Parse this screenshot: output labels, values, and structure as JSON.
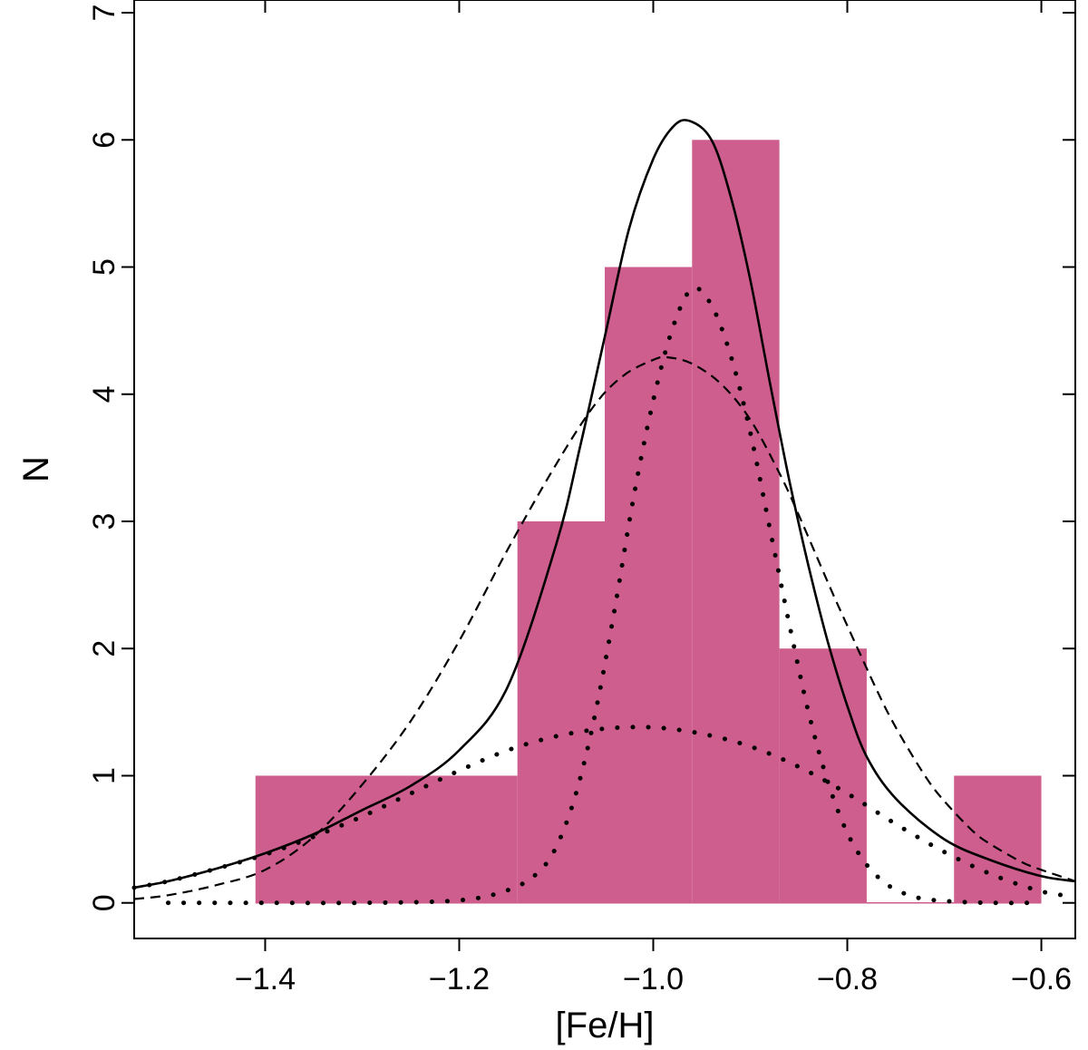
{
  "chart_data": {
    "type": "bar",
    "xlabel": "[Fe/H]",
    "ylabel": "N",
    "xlim": [
      -1.535,
      -0.565
    ],
    "ylim": [
      -0.28,
      7.1
    ],
    "xticks": [
      -1.4,
      -1.2,
      -1.0,
      -0.8,
      -0.6
    ],
    "xtick_labels": [
      "−1.4",
      "−1.2",
      "−1.0",
      "−0.8",
      "−0.6"
    ],
    "yticks": [
      0,
      1,
      2,
      3,
      4,
      5,
      6,
      7
    ],
    "ytick_labels": [
      "0",
      "1",
      "2",
      "3",
      "4",
      "5",
      "6",
      "7"
    ],
    "grid": false,
    "bar_color": "#cd5e8e",
    "histogram": {
      "bins": [
        {
          "x0": -1.41,
          "x1": -1.14,
          "count": 1
        },
        {
          "x0": -1.14,
          "x1": -1.05,
          "count": 3
        },
        {
          "x0": -1.05,
          "x1": -0.96,
          "count": 5
        },
        {
          "x0": -0.96,
          "x1": -0.87,
          "count": 6
        },
        {
          "x0": -0.87,
          "x1": -0.78,
          "count": 2
        },
        {
          "x0": -0.78,
          "x1": -0.69,
          "count": 0
        },
        {
          "x0": -0.69,
          "x1": -0.6,
          "count": 1
        }
      ]
    },
    "curves": [
      {
        "style": "solid",
        "x": [
          -1.535,
          -1.5,
          -1.45,
          -1.4,
          -1.35,
          -1.3,
          -1.25,
          -1.2,
          -1.15,
          -1.1,
          -1.075,
          -1.05,
          -1.025,
          -1.0,
          -0.98,
          -0.963,
          -0.94,
          -0.92,
          -0.9,
          -0.88,
          -0.86,
          -0.84,
          -0.82,
          -0.8,
          -0.78,
          -0.75,
          -0.7,
          -0.65,
          -0.6,
          -0.565
        ],
        "y": [
          0.12,
          0.17,
          0.27,
          0.39,
          0.54,
          0.73,
          0.92,
          1.2,
          1.7,
          2.82,
          3.6,
          4.45,
          5.3,
          5.85,
          6.1,
          6.15,
          6.0,
          5.55,
          4.9,
          4.1,
          3.33,
          2.65,
          2.05,
          1.55,
          1.15,
          0.82,
          0.5,
          0.33,
          0.21,
          0.17
        ]
      },
      {
        "style": "dashed",
        "x": [
          -1.535,
          -1.5,
          -1.45,
          -1.4,
          -1.35,
          -1.3,
          -1.25,
          -1.2,
          -1.15,
          -1.1,
          -1.06,
          -1.03,
          -1.0,
          -0.985,
          -0.96,
          -0.93,
          -0.9,
          -0.87,
          -0.85,
          -0.82,
          -0.8,
          -0.77,
          -0.75,
          -0.72,
          -0.7,
          -0.67,
          -0.65,
          -0.62,
          -0.6,
          -0.565
        ],
        "y": [
          0.03,
          0.06,
          0.14,
          0.26,
          0.52,
          0.93,
          1.43,
          2.06,
          2.78,
          3.45,
          3.92,
          4.15,
          4.27,
          4.29,
          4.24,
          4.08,
          3.8,
          3.38,
          3.05,
          2.52,
          2.18,
          1.68,
          1.38,
          1.0,
          0.8,
          0.56,
          0.45,
          0.32,
          0.26,
          0.17
        ]
      },
      {
        "style": "dotted",
        "x": [
          -1.535,
          -1.5,
          -1.45,
          -1.4,
          -1.35,
          -1.3,
          -1.25,
          -1.2,
          -1.15,
          -1.1,
          -1.05,
          -1.0,
          -0.95,
          -0.9,
          -0.85,
          -0.8,
          -0.75,
          -0.7,
          -0.65,
          -0.6,
          -0.565
        ],
        "y": [
          0.12,
          0.17,
          0.27,
          0.38,
          0.52,
          0.68,
          0.86,
          1.04,
          1.2,
          1.31,
          1.37,
          1.38,
          1.33,
          1.23,
          1.07,
          0.86,
          0.62,
          0.4,
          0.22,
          0.09,
          0.05
        ]
      },
      {
        "style": "dotted",
        "x": [
          -1.5,
          -1.4,
          -1.3,
          -1.2,
          -1.15,
          -1.12,
          -1.1,
          -1.08,
          -1.06,
          -1.04,
          -1.02,
          -1.0,
          -0.98,
          -0.96,
          -0.94,
          -0.92,
          -0.9,
          -0.88,
          -0.86,
          -0.84,
          -0.82,
          -0.8,
          -0.78,
          -0.76,
          -0.74,
          -0.72,
          -0.69,
          -0.65,
          -0.6
        ],
        "y": [
          0.0,
          0.0,
          0.0,
          0.02,
          0.1,
          0.23,
          0.44,
          0.85,
          1.48,
          2.3,
          3.2,
          3.95,
          4.52,
          4.83,
          4.7,
          4.3,
          3.7,
          2.95,
          2.2,
          1.5,
          0.95,
          0.55,
          0.3,
          0.15,
          0.07,
          0.03,
          0.01,
          0.0,
          0.0
        ]
      }
    ]
  }
}
